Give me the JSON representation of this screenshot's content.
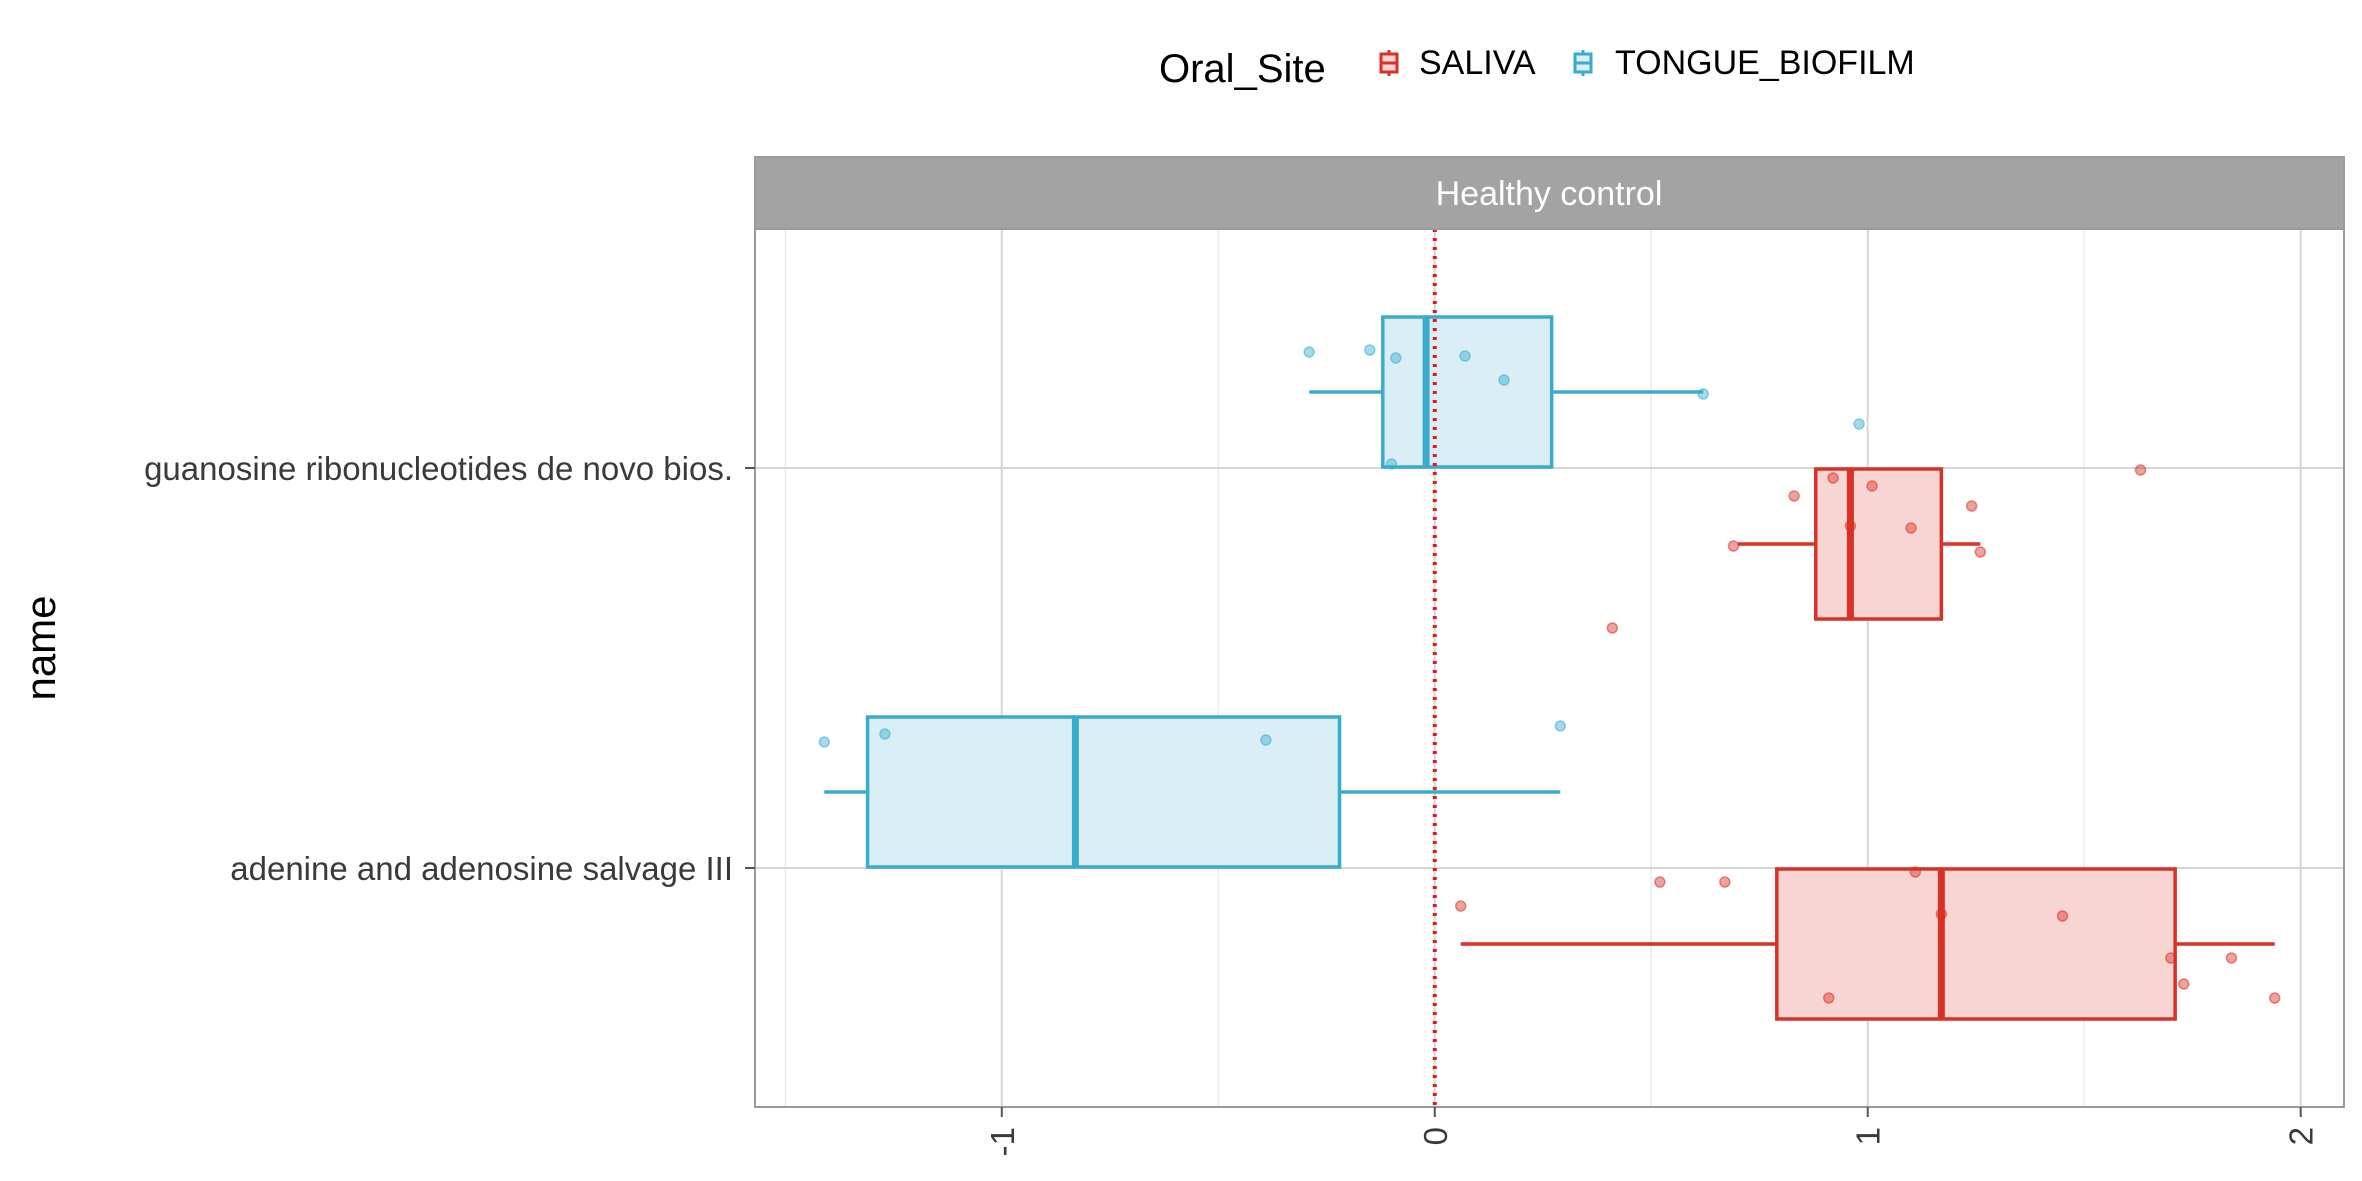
{
  "chart_data": {
    "type": "boxplot",
    "orientation": "horizontal",
    "facet_label": "Healthy control",
    "ylabel": "name",
    "xlabel": "",
    "xlim": [
      -1.57,
      2.1
    ],
    "x_ticks": [
      -1,
      0,
      1,
      2
    ],
    "x_tick_labels": [
      "-1",
      "0",
      "1",
      "2"
    ],
    "reference_line_x": 0,
    "grid": true,
    "legend": {
      "title": "Oral_Site",
      "position": "top",
      "entries": [
        "SALIVA",
        "TONGUE_BIOFILM"
      ]
    },
    "categories": [
      "guanosine ribonucleotides de novo bios.",
      "adenine and adenosine salvage III"
    ],
    "series": [
      {
        "name": "SALIVA",
        "color": "#d93127",
        "fill": "#f7d5d3",
        "boxes": [
          {
            "category": "guanosine ribonucleotides de novo bios.",
            "whisker_low": 0.7,
            "q1": 0.88,
            "median": 0.96,
            "q3": 1.17,
            "whisker_high": 1.26
          },
          {
            "category": "adenine and adenosine salvage III",
            "whisker_low": 0.06,
            "q1": 0.79,
            "median": 1.17,
            "q3": 1.71,
            "whisker_high": 1.94
          }
        ],
        "points": [
          {
            "category": "guanosine ribonucleotides de novo bios.",
            "x": 1.63,
            "jitter": -0.01
          },
          {
            "category": "guanosine ribonucleotides de novo bios.",
            "x": 0.92,
            "jitter": -0.05
          },
          {
            "category": "guanosine ribonucleotides de novo bios.",
            "x": 1.01,
            "jitter": -0.09
          },
          {
            "category": "guanosine ribonucleotides de novo bios.",
            "x": 0.83,
            "jitter": -0.14
          },
          {
            "category": "guanosine ribonucleotides de novo bios.",
            "x": 1.24,
            "jitter": -0.19
          },
          {
            "category": "guanosine ribonucleotides de novo bios.",
            "x": 0.96,
            "jitter": -0.29
          },
          {
            "category": "guanosine ribonucleotides de novo bios.",
            "x": 1.1,
            "jitter": -0.3
          },
          {
            "category": "guanosine ribonucleotides de novo bios.",
            "x": 0.69,
            "jitter": -0.39
          },
          {
            "category": "guanosine ribonucleotides de novo bios.",
            "x": 1.26,
            "jitter": -0.42
          },
          {
            "category": "guanosine ribonucleotides de novo bios.",
            "x": 0.41,
            "jitter": -0.8
          },
          {
            "category": "adenine and adenosine salvage III",
            "x": 1.11,
            "jitter": -0.02
          },
          {
            "category": "adenine and adenosine salvage III",
            "x": 0.52,
            "jitter": -0.07
          },
          {
            "category": "adenine and adenosine salvage III",
            "x": 0.67,
            "jitter": -0.07
          },
          {
            "category": "adenine and adenosine salvage III",
            "x": 0.06,
            "jitter": -0.19
          },
          {
            "category": "adenine and adenosine salvage III",
            "x": 1.17,
            "jitter": -0.23
          },
          {
            "category": "adenine and adenosine salvage III",
            "x": 1.45,
            "jitter": -0.24
          },
          {
            "category": "adenine and adenosine salvage III",
            "x": 1.7,
            "jitter": -0.45
          },
          {
            "category": "adenine and adenosine salvage III",
            "x": 1.84,
            "jitter": -0.45
          },
          {
            "category": "adenine and adenosine salvage III",
            "x": 1.73,
            "jitter": -0.58
          },
          {
            "category": "adenine and adenosine salvage III",
            "x": 0.91,
            "jitter": -0.65
          },
          {
            "category": "adenine and adenosine salvage III",
            "x": 1.94,
            "jitter": -0.65
          }
        ]
      },
      {
        "name": "TONGUE_BIOFILM",
        "color": "#3aaccb",
        "fill": "#d9eef5",
        "boxes": [
          {
            "category": "guanosine ribonucleotides de novo bios.",
            "whisker_low": -0.29,
            "q1": -0.12,
            "median": -0.02,
            "q3": 0.27,
            "whisker_high": 0.62
          },
          {
            "category": "adenine and adenosine salvage III",
            "whisker_low": -1.41,
            "q1": -1.31,
            "median": -0.83,
            "q3": -0.22,
            "whisker_high": 0.29
          }
        ],
        "points": [
          {
            "category": "guanosine ribonucleotides de novo bios.",
            "x": -0.29,
            "jitter": 0.58
          },
          {
            "category": "guanosine ribonucleotides de novo bios.",
            "x": -0.15,
            "jitter": 0.59
          },
          {
            "category": "guanosine ribonucleotides de novo bios.",
            "x": -0.09,
            "jitter": 0.55
          },
          {
            "category": "guanosine ribonucleotides de novo bios.",
            "x": 0.07,
            "jitter": 0.56
          },
          {
            "category": "guanosine ribonucleotides de novo bios.",
            "x": 0.16,
            "jitter": 0.44
          },
          {
            "category": "guanosine ribonucleotides de novo bios.",
            "x": 0.62,
            "jitter": 0.37
          },
          {
            "category": "guanosine ribonucleotides de novo bios.",
            "x": 0.98,
            "jitter": 0.22
          },
          {
            "category": "guanosine ribonucleotides de novo bios.",
            "x": -0.1,
            "jitter": 0.02
          },
          {
            "category": "adenine and adenosine salvage III",
            "x": -1.41,
            "jitter": 0.63
          },
          {
            "category": "adenine and adenosine salvage III",
            "x": -1.27,
            "jitter": 0.67
          },
          {
            "category": "adenine and adenosine salvage III",
            "x": -0.39,
            "jitter": 0.64
          },
          {
            "category": "adenine and adenosine salvage III",
            "x": 0.29,
            "jitter": 0.71
          }
        ]
      }
    ]
  }
}
